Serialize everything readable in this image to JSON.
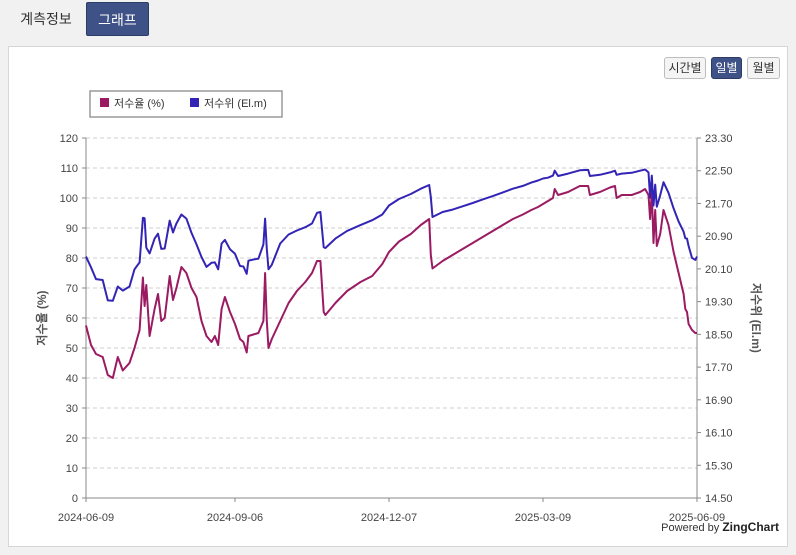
{
  "tabs": [
    {
      "label": "계측정보",
      "active": false
    },
    {
      "label": "그래프",
      "active": true
    }
  ],
  "period_buttons": [
    {
      "label": "시간별",
      "active": false
    },
    {
      "label": "일별",
      "active": true
    },
    {
      "label": "월별",
      "active": false
    }
  ],
  "credit": {
    "prefix": "Powered by ",
    "brand": "ZingChart"
  },
  "colors": {
    "rate": "#9b1b63",
    "level": "#3424b5",
    "accent": "#3f5287"
  },
  "chart_data": {
    "type": "line",
    "legend_position": "top-left",
    "grid": true,
    "x_ticks": [
      "2024-06-09",
      "2024-09-06",
      "2024-12-07",
      "2025-03-09",
      "2025-06-09"
    ],
    "y_left": {
      "label": "저수율 (%)",
      "range": [
        0,
        120
      ],
      "ticks": [
        "0",
        "10",
        "20",
        "30",
        "40",
        "50",
        "60",
        "70",
        "80",
        "90",
        "100",
        "110",
        "120"
      ]
    },
    "y_right": {
      "label": "저수위 (El.m)",
      "range": [
        14.5,
        23.3
      ],
      "ticks": [
        "14.50",
        "15.30",
        "16.10",
        "16.90",
        "17.70",
        "18.50",
        "19.30",
        "20.10",
        "20.90",
        "21.70",
        "22.50",
        "23.30"
      ]
    },
    "series": [
      {
        "name": "저수율 (%)",
        "axis": "left",
        "points": [
          [
            "2024-06-09",
            57.5
          ],
          [
            "2024-06-12",
            51
          ],
          [
            "2024-06-15",
            48
          ],
          [
            "2024-06-19",
            47
          ],
          [
            "2024-06-22",
            41
          ],
          [
            "2024-06-25",
            40
          ],
          [
            "2024-06-28",
            47
          ],
          [
            "2024-07-01",
            42.5
          ],
          [
            "2024-07-05",
            45
          ],
          [
            "2024-07-08",
            50
          ],
          [
            "2024-07-11",
            56
          ],
          [
            "2024-07-13",
            73.5
          ],
          [
            "2024-07-14",
            64
          ],
          [
            "2024-07-15",
            71
          ],
          [
            "2024-07-17",
            54
          ],
          [
            "2024-07-20",
            63
          ],
          [
            "2024-07-22",
            68
          ],
          [
            "2024-07-24",
            59
          ],
          [
            "2024-07-26",
            60
          ],
          [
            "2024-07-29",
            74
          ],
          [
            "2024-07-31",
            66
          ],
          [
            "2024-08-02",
            70
          ],
          [
            "2024-08-05",
            77
          ],
          [
            "2024-08-08",
            75
          ],
          [
            "2024-08-11",
            70
          ],
          [
            "2024-08-14",
            67
          ],
          [
            "2024-08-17",
            59
          ],
          [
            "2024-08-20",
            54
          ],
          [
            "2024-08-23",
            52
          ],
          [
            "2024-08-25",
            54
          ],
          [
            "2024-08-27",
            51
          ],
          [
            "2024-08-29",
            63
          ],
          [
            "2024-08-31",
            67
          ],
          [
            "2024-09-03",
            62
          ],
          [
            "2024-09-06",
            58
          ],
          [
            "2024-09-09",
            53
          ],
          [
            "2024-09-11",
            52
          ],
          [
            "2024-09-13",
            48.5
          ],
          [
            "2024-09-14",
            54
          ],
          [
            "2024-09-17",
            54.5
          ],
          [
            "2024-09-20",
            55
          ],
          [
            "2024-09-23",
            59
          ],
          [
            "2024-09-24",
            75
          ],
          [
            "2024-09-25",
            59
          ],
          [
            "2024-09-26",
            50
          ],
          [
            "2024-09-28",
            53
          ],
          [
            "2024-10-03",
            59
          ],
          [
            "2024-10-08",
            65
          ],
          [
            "2024-10-13",
            69
          ],
          [
            "2024-10-18",
            72
          ],
          [
            "2024-10-22",
            75
          ],
          [
            "2024-10-25",
            79
          ],
          [
            "2024-10-27",
            79
          ],
          [
            "2024-10-29",
            62
          ],
          [
            "2024-10-30",
            61
          ],
          [
            "2024-11-05",
            65
          ],
          [
            "2024-11-12",
            69
          ],
          [
            "2024-11-20",
            72
          ],
          [
            "2024-11-27",
            74
          ],
          [
            "2024-12-03",
            78
          ],
          [
            "2024-12-07",
            82
          ],
          [
            "2024-12-13",
            85.5
          ],
          [
            "2024-12-20",
            88
          ],
          [
            "2024-12-26",
            91
          ],
          [
            "2024-12-31",
            93
          ],
          [
            "2025-01-01",
            81
          ],
          [
            "2025-01-02",
            76.5
          ],
          [
            "2025-01-08",
            79
          ],
          [
            "2025-01-14",
            81
          ],
          [
            "2025-01-20",
            83
          ],
          [
            "2025-01-26",
            85
          ],
          [
            "2025-02-01",
            87
          ],
          [
            "2025-02-07",
            89
          ],
          [
            "2025-02-13",
            91
          ],
          [
            "2025-02-19",
            93
          ],
          [
            "2025-02-25",
            94.5
          ],
          [
            "2025-03-02",
            96
          ],
          [
            "2025-03-06",
            97
          ],
          [
            "2025-03-09",
            98
          ],
          [
            "2025-03-12",
            99
          ],
          [
            "2025-03-15",
            100
          ],
          [
            "2025-03-16",
            103
          ],
          [
            "2025-03-18",
            101
          ],
          [
            "2025-03-24",
            102
          ],
          [
            "2025-03-31",
            104
          ],
          [
            "2025-04-05",
            104
          ],
          [
            "2025-04-06",
            101
          ],
          [
            "2025-04-12",
            102
          ],
          [
            "2025-04-18",
            103.5
          ],
          [
            "2025-04-21",
            104
          ],
          [
            "2025-04-22",
            100
          ],
          [
            "2025-04-25",
            101
          ],
          [
            "2025-05-01",
            101
          ],
          [
            "2025-05-06",
            102
          ],
          [
            "2025-05-09",
            103
          ],
          [
            "2025-05-11",
            101
          ],
          [
            "2025-05-12",
            93
          ],
          [
            "2025-05-13",
            102
          ],
          [
            "2025-05-14",
            85
          ],
          [
            "2025-05-15",
            96
          ],
          [
            "2025-05-16",
            84
          ],
          [
            "2025-05-18",
            88
          ],
          [
            "2025-05-20",
            96
          ],
          [
            "2025-05-23",
            91
          ],
          [
            "2025-05-26",
            82
          ],
          [
            "2025-05-29",
            75
          ],
          [
            "2025-06-01",
            68
          ],
          [
            "2025-06-02",
            63
          ],
          [
            "2025-06-03",
            62
          ],
          [
            "2025-06-04",
            58
          ],
          [
            "2025-06-06",
            56
          ],
          [
            "2025-06-08",
            55
          ],
          [
            "2025-06-09",
            55
          ]
        ]
      },
      {
        "name": "저수위 (El.m)",
        "axis": "right",
        "points": [
          [
            "2024-06-09",
            20.4
          ],
          [
            "2024-06-12",
            20.14
          ],
          [
            "2024-06-15",
            19.85
          ],
          [
            "2024-06-19",
            19.83
          ],
          [
            "2024-06-22",
            19.33
          ],
          [
            "2024-06-25",
            19.32
          ],
          [
            "2024-06-28",
            19.67
          ],
          [
            "2024-07-01",
            19.57
          ],
          [
            "2024-07-05",
            19.67
          ],
          [
            "2024-07-08",
            20.09
          ],
          [
            "2024-07-11",
            20.26
          ],
          [
            "2024-07-13",
            21.35
          ],
          [
            "2024-07-14",
            21.34
          ],
          [
            "2024-07-15",
            20.62
          ],
          [
            "2024-07-17",
            20.48
          ],
          [
            "2024-07-20",
            20.84
          ],
          [
            "2024-07-22",
            20.96
          ],
          [
            "2024-07-24",
            20.59
          ],
          [
            "2024-07-26",
            20.6
          ],
          [
            "2024-07-29",
            21.28
          ],
          [
            "2024-07-31",
            20.99
          ],
          [
            "2024-08-02",
            21.21
          ],
          [
            "2024-08-05",
            21.43
          ],
          [
            "2024-08-08",
            21.33
          ],
          [
            "2024-08-11",
            20.98
          ],
          [
            "2024-08-14",
            20.7
          ],
          [
            "2024-08-17",
            20.39
          ],
          [
            "2024-08-20",
            20.15
          ],
          [
            "2024-08-23",
            20.25
          ],
          [
            "2024-08-25",
            20.26
          ],
          [
            "2024-08-27",
            20.09
          ],
          [
            "2024-08-29",
            20.72
          ],
          [
            "2024-08-31",
            20.81
          ],
          [
            "2024-09-03",
            20.58
          ],
          [
            "2024-09-06",
            20.47
          ],
          [
            "2024-09-09",
            20.17
          ],
          [
            "2024-09-11",
            20.16
          ],
          [
            "2024-09-13",
            19.98
          ],
          [
            "2024-09-14",
            20.3
          ],
          [
            "2024-09-17",
            20.33
          ],
          [
            "2024-09-20",
            20.35
          ],
          [
            "2024-09-23",
            20.7
          ],
          [
            "2024-09-24",
            21.33
          ],
          [
            "2024-09-25",
            20.59
          ],
          [
            "2024-09-26",
            20.09
          ],
          [
            "2024-09-28",
            20.2
          ],
          [
            "2024-10-03",
            20.72
          ],
          [
            "2024-10-08",
            20.94
          ],
          [
            "2024-10-13",
            21.04
          ],
          [
            "2024-10-18",
            21.12
          ],
          [
            "2024-10-22",
            21.21
          ],
          [
            "2024-10-25",
            21.47
          ],
          [
            "2024-10-27",
            21.49
          ],
          [
            "2024-10-29",
            20.63
          ],
          [
            "2024-10-30",
            20.61
          ],
          [
            "2024-11-05",
            20.84
          ],
          [
            "2024-11-12",
            21.03
          ],
          [
            "2024-11-20",
            21.17
          ],
          [
            "2024-11-27",
            21.29
          ],
          [
            "2024-12-03",
            21.43
          ],
          [
            "2024-12-07",
            21.65
          ],
          [
            "2024-12-13",
            21.81
          ],
          [
            "2024-12-20",
            21.93
          ],
          [
            "2024-12-26",
            22.06
          ],
          [
            "2024-12-31",
            22.15
          ],
          [
            "2025-01-01",
            21.86
          ],
          [
            "2025-01-02",
            21.37
          ],
          [
            "2025-01-08",
            21.49
          ],
          [
            "2025-01-14",
            21.55
          ],
          [
            "2025-01-20",
            21.63
          ],
          [
            "2025-01-26",
            21.71
          ],
          [
            "2025-02-01",
            21.8
          ],
          [
            "2025-02-07",
            21.88
          ],
          [
            "2025-02-13",
            21.97
          ],
          [
            "2025-02-19",
            22.06
          ],
          [
            "2025-02-25",
            22.13
          ],
          [
            "2025-03-02",
            22.21
          ],
          [
            "2025-03-06",
            22.26
          ],
          [
            "2025-03-09",
            22.31
          ],
          [
            "2025-03-12",
            22.33
          ],
          [
            "2025-03-15",
            22.38
          ],
          [
            "2025-03-16",
            22.5
          ],
          [
            "2025-03-18",
            22.37
          ],
          [
            "2025-03-24",
            22.43
          ],
          [
            "2025-03-31",
            22.51
          ],
          [
            "2025-04-05",
            22.52
          ],
          [
            "2025-04-06",
            22.37
          ],
          [
            "2025-04-12",
            22.4
          ],
          [
            "2025-04-18",
            22.46
          ],
          [
            "2025-04-21",
            22.5
          ],
          [
            "2025-04-22",
            22.4
          ],
          [
            "2025-04-25",
            22.43
          ],
          [
            "2025-05-01",
            22.45
          ],
          [
            "2025-05-06",
            22.5
          ],
          [
            "2025-05-09",
            22.53
          ],
          [
            "2025-05-11",
            22.46
          ],
          [
            "2025-05-12",
            21.84
          ],
          [
            "2025-05-13",
            22.38
          ],
          [
            "2025-05-14",
            21.65
          ],
          [
            "2025-05-15",
            22.16
          ],
          [
            "2025-05-16",
            21.62
          ],
          [
            "2025-05-18",
            21.9
          ],
          [
            "2025-05-20",
            22.22
          ],
          [
            "2025-05-23",
            21.96
          ],
          [
            "2025-05-26",
            21.58
          ],
          [
            "2025-05-29",
            21.26
          ],
          [
            "2025-06-01",
            21.01
          ],
          [
            "2025-06-02",
            20.85
          ],
          [
            "2025-06-03",
            20.84
          ],
          [
            "2025-06-04",
            20.66
          ],
          [
            "2025-06-06",
            20.37
          ],
          [
            "2025-06-08",
            20.32
          ],
          [
            "2025-06-09",
            20.4
          ]
        ]
      }
    ]
  }
}
